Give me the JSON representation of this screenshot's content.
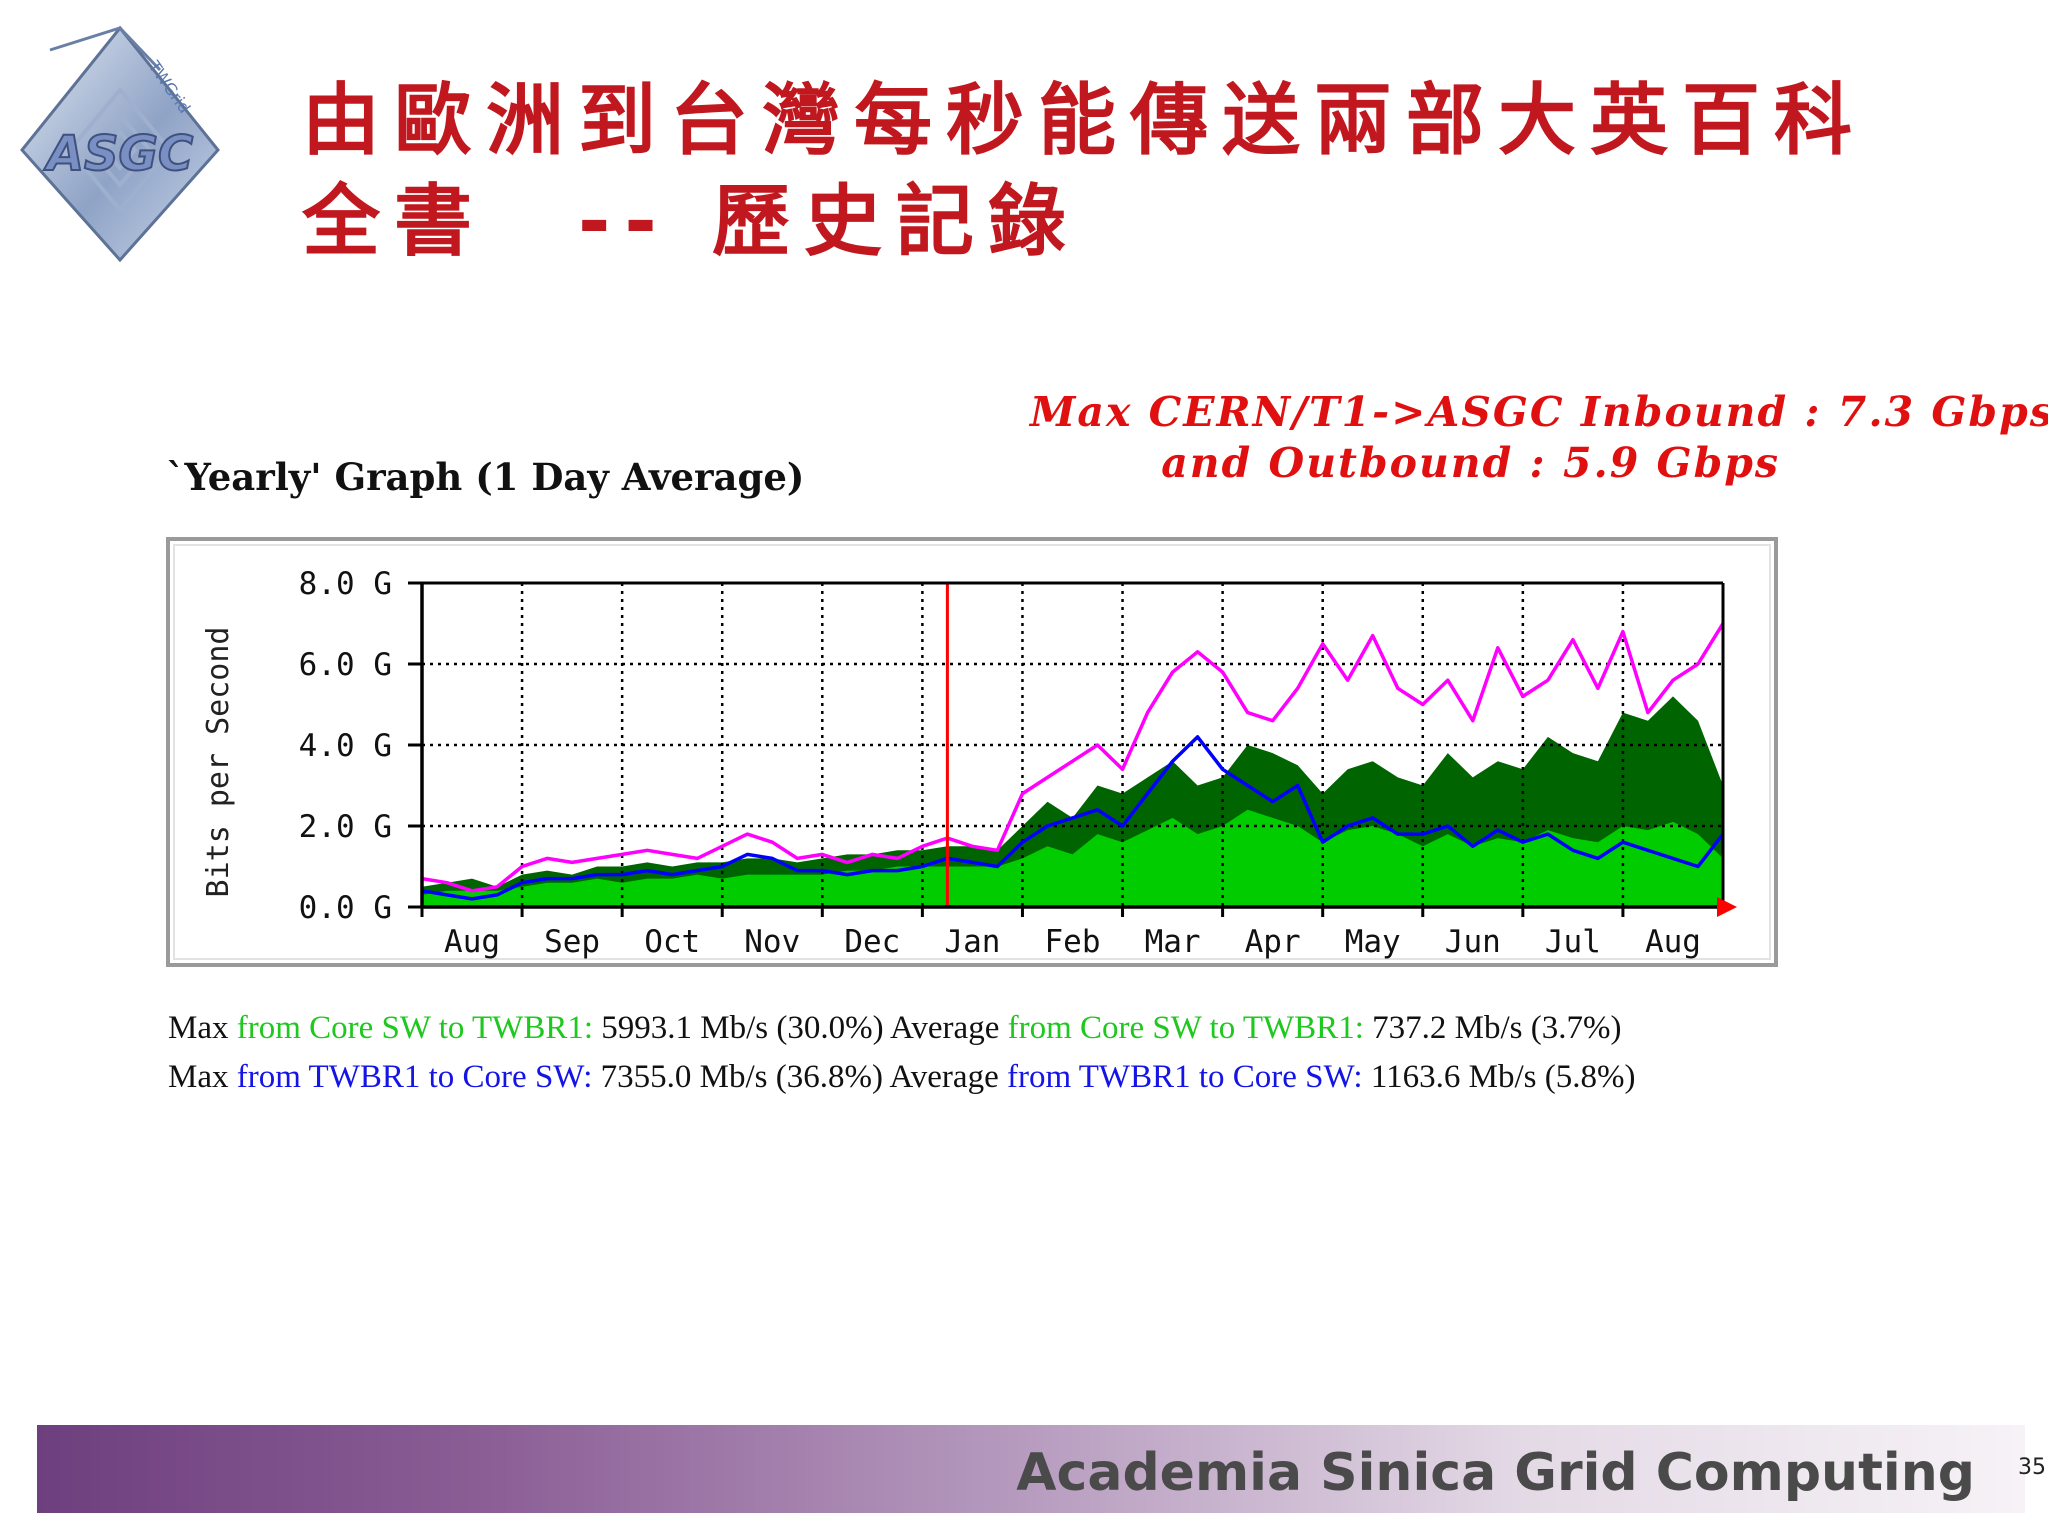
{
  "logo": {
    "main_text": "ASGC",
    "ring_text": "TWGrid"
  },
  "title": {
    "line1": "由歐洲到台灣每秒能傳送兩部大英百科",
    "line2": "全書　-- 歷史記錄"
  },
  "annotation": {
    "line1": "Max CERN/T1->ASGC Inbound : 7.3 Gbps,",
    "line2": "and Outbound : 5.9 Gbps"
  },
  "graph_heading": "`Yearly' Graph (1 Day Average)",
  "chart_data": {
    "type": "area",
    "ylabel": "Bits per Second",
    "y_ticks": [
      "0.0 G",
      "2.0 G",
      "4.0 G",
      "6.0 G",
      "8.0 G"
    ],
    "ylim": [
      0,
      8
    ],
    "y_unit": "G",
    "x_tick_labels": [
      "Aug",
      "Sep",
      "Oct",
      "Nov",
      "Dec",
      "Jan",
      "Feb",
      "Mar",
      "Apr",
      "May",
      "Jun",
      "Jul",
      "Aug"
    ],
    "x_tick_positions": [
      0.5,
      1.5,
      2.5,
      3.5,
      4.5,
      5.5,
      6.5,
      7.5,
      8.5,
      9.5,
      10.5,
      11.5,
      12.5
    ],
    "xlim": [
      0,
      13
    ],
    "year_boundary_x": 5.25,
    "grid": true,
    "colors": {
      "max_in": "#006400",
      "avg_in": "#00cc00",
      "max_out": "#ff00ff",
      "avg_out": "#0000ff",
      "marker": "#ff0000"
    },
    "series": [
      {
        "key": "max_in",
        "style": "area",
        "x": [
          0,
          0.25,
          0.5,
          0.75,
          1,
          1.25,
          1.5,
          1.75,
          2,
          2.25,
          2.5,
          2.75,
          3,
          3.25,
          3.5,
          3.75,
          4,
          4.25,
          4.5,
          4.75,
          5,
          5.25,
          5.5,
          5.75,
          6,
          6.25,
          6.5,
          6.75,
          7,
          7.25,
          7.5,
          7.75,
          8,
          8.25,
          8.5,
          8.75,
          9,
          9.25,
          9.5,
          9.75,
          10,
          10.25,
          10.5,
          10.75,
          11,
          11.25,
          11.5,
          11.75,
          12,
          12.25,
          12.5,
          12.75,
          13
        ],
        "values": [
          0.5,
          0.6,
          0.7,
          0.5,
          0.8,
          0.9,
          0.8,
          1.0,
          1.0,
          1.1,
          1.0,
          1.1,
          1.1,
          1.2,
          1.2,
          1.1,
          1.2,
          1.3,
          1.3,
          1.4,
          1.4,
          1.5,
          1.5,
          1.4,
          2.0,
          2.6,
          2.2,
          3.0,
          2.8,
          3.2,
          3.6,
          3.0,
          3.2,
          4.0,
          3.8,
          3.5,
          2.8,
          3.4,
          3.6,
          3.2,
          3.0,
          3.8,
          3.2,
          3.6,
          3.4,
          4.2,
          3.8,
          3.6,
          4.8,
          4.6,
          5.2,
          4.6,
          3.0
        ]
      },
      {
        "key": "avg_in",
        "style": "area",
        "x": [
          0,
          0.25,
          0.5,
          0.75,
          1,
          1.25,
          1.5,
          1.75,
          2,
          2.25,
          2.5,
          2.75,
          3,
          3.25,
          3.5,
          3.75,
          4,
          4.25,
          4.5,
          4.75,
          5,
          5.25,
          5.5,
          5.75,
          6,
          6.25,
          6.5,
          6.75,
          7,
          7.25,
          7.5,
          7.75,
          8,
          8.25,
          8.5,
          8.75,
          9,
          9.25,
          9.5,
          9.75,
          10,
          10.25,
          10.5,
          10.75,
          11,
          11.25,
          11.5,
          11.75,
          12,
          12.25,
          12.5,
          12.75,
          13
        ],
        "values": [
          0.3,
          0.4,
          0.4,
          0.4,
          0.5,
          0.6,
          0.6,
          0.7,
          0.6,
          0.7,
          0.7,
          0.8,
          0.7,
          0.8,
          0.8,
          0.8,
          0.8,
          0.9,
          0.9,
          1.0,
          1.0,
          1.0,
          1.0,
          1.0,
          1.2,
          1.5,
          1.3,
          1.8,
          1.6,
          1.9,
          2.2,
          1.8,
          2.0,
          2.4,
          2.2,
          2.0,
          1.6,
          1.9,
          2.0,
          1.8,
          1.5,
          1.8,
          1.5,
          1.7,
          1.6,
          1.9,
          1.7,
          1.6,
          2.0,
          1.9,
          2.1,
          1.8,
          1.2
        ]
      },
      {
        "key": "max_out",
        "style": "line",
        "x": [
          0,
          0.25,
          0.5,
          0.75,
          1,
          1.25,
          1.5,
          1.75,
          2,
          2.25,
          2.5,
          2.75,
          3,
          3.25,
          3.5,
          3.75,
          4,
          4.25,
          4.5,
          4.75,
          5,
          5.25,
          5.5,
          5.75,
          6,
          6.25,
          6.5,
          6.75,
          7,
          7.25,
          7.5,
          7.75,
          8,
          8.25,
          8.5,
          8.75,
          9,
          9.25,
          9.5,
          9.75,
          10,
          10.25,
          10.5,
          10.75,
          11,
          11.25,
          11.5,
          11.75,
          12,
          12.25,
          12.5,
          12.75,
          13
        ],
        "values": [
          0.7,
          0.6,
          0.4,
          0.5,
          1.0,
          1.2,
          1.1,
          1.2,
          1.3,
          1.4,
          1.3,
          1.2,
          1.5,
          1.8,
          1.6,
          1.2,
          1.3,
          1.1,
          1.3,
          1.2,
          1.5,
          1.7,
          1.5,
          1.4,
          2.8,
          3.2,
          3.6,
          4.0,
          3.4,
          4.8,
          5.8,
          6.3,
          5.8,
          4.8,
          4.6,
          5.4,
          6.5,
          5.6,
          6.7,
          5.4,
          5.0,
          5.6,
          4.6,
          6.4,
          5.2,
          5.6,
          6.6,
          5.4,
          6.8,
          4.8,
          5.6,
          6.0,
          7.0
        ]
      },
      {
        "key": "avg_out",
        "style": "line",
        "x": [
          0,
          0.25,
          0.5,
          0.75,
          1,
          1.25,
          1.5,
          1.75,
          2,
          2.25,
          2.5,
          2.75,
          3,
          3.25,
          3.5,
          3.75,
          4,
          4.25,
          4.5,
          4.75,
          5,
          5.25,
          5.5,
          5.75,
          6,
          6.25,
          6.5,
          6.75,
          7,
          7.25,
          7.5,
          7.75,
          8,
          8.25,
          8.5,
          8.75,
          9,
          9.25,
          9.5,
          9.75,
          10,
          10.25,
          10.5,
          10.75,
          11,
          11.25,
          11.5,
          11.75,
          12,
          12.25,
          12.5,
          12.75,
          13
        ],
        "values": [
          0.4,
          0.3,
          0.2,
          0.3,
          0.6,
          0.7,
          0.7,
          0.8,
          0.8,
          0.9,
          0.8,
          0.9,
          1.0,
          1.3,
          1.2,
          0.9,
          0.9,
          0.8,
          0.9,
          0.9,
          1.0,
          1.2,
          1.1,
          1.0,
          1.6,
          2.0,
          2.2,
          2.4,
          2.0,
          2.8,
          3.6,
          4.2,
          3.4,
          3.0,
          2.6,
          3.0,
          1.6,
          2.0,
          2.2,
          1.8,
          1.8,
          2.0,
          1.5,
          1.9,
          1.6,
          1.8,
          1.4,
          1.2,
          1.6,
          1.4,
          1.2,
          1.0,
          1.8
        ]
      }
    ]
  },
  "stats": {
    "row1": {
      "max_label": "Max",
      "max_series": "from Core SW to TWBR1:",
      "max_value": "5993.1 Mb/s (30.0%)",
      "avg_label": "Average",
      "avg_series": "from Core SW to TWBR1:",
      "avg_value": "737.2 Mb/s (3.7%)"
    },
    "row2": {
      "max_label": "Max",
      "max_series": "from TWBR1 to Core SW:",
      "max_value": "7355.0 Mb/s (36.8%)",
      "avg_label": "Average",
      "avg_series": "from TWBR1 to Core SW:",
      "avg_value": "1163.6 Mb/s (5.8%)"
    }
  },
  "footer": {
    "text": "Academia Sinica Grid Computing",
    "page_number": "35"
  }
}
